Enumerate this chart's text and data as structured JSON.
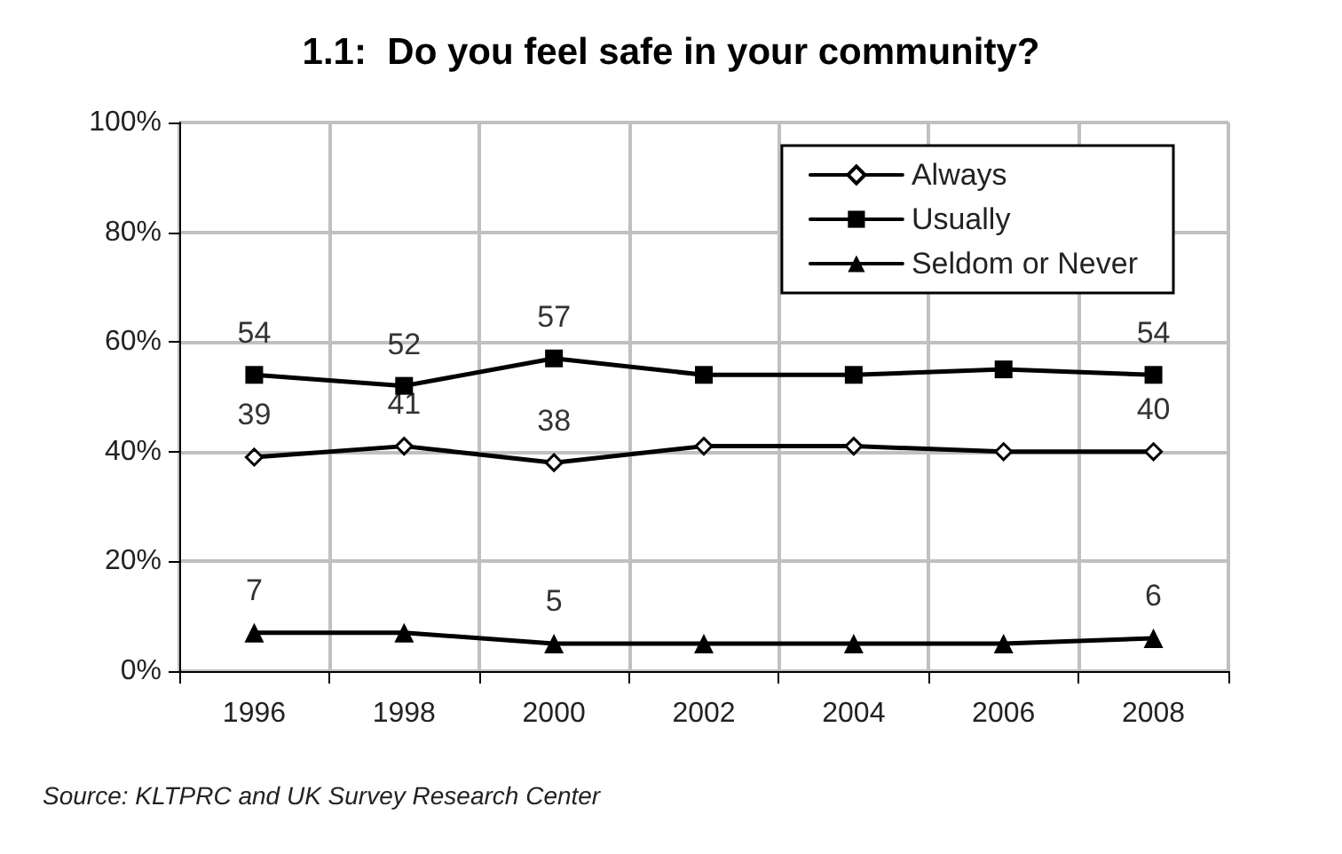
{
  "chart_data": {
    "type": "line",
    "title": "1.1:  Do you feel safe in your community?",
    "categories": [
      "1996",
      "1998",
      "2000",
      "2002",
      "2004",
      "2006",
      "2008"
    ],
    "series": [
      {
        "name": "Always",
        "color": "#000000",
        "marker": "diamond",
        "values": [
          39,
          41,
          38,
          41,
          41,
          40,
          40
        ],
        "value_labels": [
          "39",
          "41",
          "38",
          null,
          null,
          null,
          "40"
        ]
      },
      {
        "name": "Usually",
        "color": "#000000",
        "marker": "square",
        "values": [
          54,
          52,
          57,
          54,
          54,
          55,
          54
        ],
        "value_labels": [
          "54",
          "52",
          "57",
          null,
          null,
          null,
          "54"
        ]
      },
      {
        "name": "Seldom or Never",
        "color": "#000000",
        "marker": "triangle",
        "values": [
          7,
          7,
          5,
          5,
          5,
          5,
          6
        ],
        "value_labels": [
          "7",
          null,
          "5",
          null,
          null,
          null,
          "6"
        ]
      }
    ],
    "ylim": [
      0,
      100
    ],
    "yticks": [
      {
        "value": 0,
        "label": "0%"
      },
      {
        "value": 20,
        "label": "20%"
      },
      {
        "value": 40,
        "label": "40%"
      },
      {
        "value": 60,
        "label": "60%"
      },
      {
        "value": 80,
        "label": "80%"
      },
      {
        "value": 100,
        "label": "100%"
      }
    ],
    "grid": true,
    "legend": "top right",
    "line_style": "solid",
    "annotations": [
      "Source: KLTPRC and UK Survey Research Center"
    ]
  }
}
